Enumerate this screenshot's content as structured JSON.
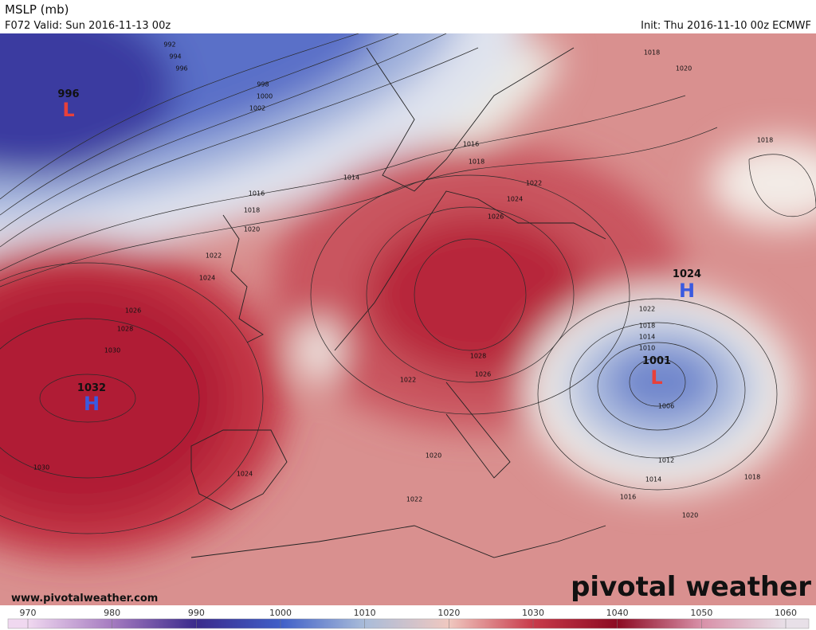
{
  "header": {
    "title": "MSLP (mb)",
    "valid": "F072 Valid: Sun 2016-11-13 00z",
    "init": "Init: Thu 2016-11-10 00z ECMWF"
  },
  "pressure_centers": [
    {
      "symbol": "L",
      "value": 996
    },
    {
      "symbol": "H",
      "value": 1032
    },
    {
      "symbol": "H",
      "value": 1024
    },
    {
      "symbol": "L",
      "value": 1001
    }
  ],
  "contour_labels": [
    992,
    994,
    996,
    998,
    1000,
    1002,
    1014,
    1016,
    1018,
    1020,
    1022,
    1024,
    1026,
    1028,
    1030,
    1030,
    1016,
    1018,
    1018,
    1020,
    1018,
    1022,
    1024,
    1026,
    1028,
    1026,
    1022,
    1020,
    1022,
    1024,
    1022,
    1018,
    1014,
    1010,
    1006,
    1012,
    1014,
    1016,
    1018,
    1020
  ],
  "footer": {
    "website": "www.pivotalweather.com",
    "logo": "pivotal weather"
  },
  "colorbar": {
    "ticks": [
      970,
      980,
      990,
      1000,
      1010,
      1020,
      1030,
      1040,
      1050,
      1060
    ],
    "colors": [
      "#f0d8f0",
      "#a57bc0",
      "#3a2a8c",
      "#3f5fc8",
      "#a9bcd9",
      "#f0c8c0",
      "#c83a4a",
      "#8c0a22",
      "#d890a8",
      "#e8e0e8"
    ]
  }
}
